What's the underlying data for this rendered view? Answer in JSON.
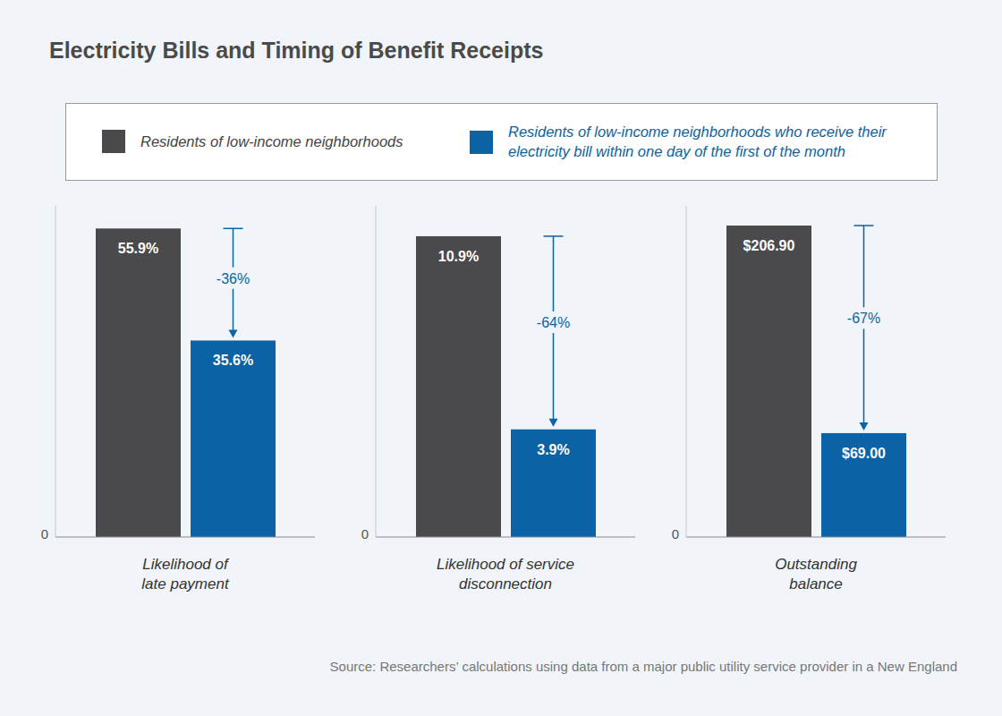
{
  "title": "Electricity Bills and Timing of Benefit Receipts",
  "source": "Source: Researchers’ calculations using data from a major public utility service provider in a New England",
  "chart_data": [
    {
      "type": "bar",
      "xlabel": "Likelihood of late payment",
      "categories": [
        null
      ],
      "ylim": [
        0,
        60
      ],
      "yticks": [
        0
      ],
      "data_labels": true,
      "annotation": "-36%",
      "series": [
        {
          "name": "Residents of low-income neighborhoods",
          "color": "#4a4a4c",
          "values": [
            55.9
          ],
          "value_labels": [
            "55.9%"
          ]
        },
        {
          "name": "Residents of low-income neighborhoods who receive their electricity bill within one day of the first of the month",
          "color": "#0b63a5",
          "values": [
            35.6
          ],
          "value_labels": [
            "35.6%"
          ]
        }
      ]
    },
    {
      "type": "bar",
      "xlabel": "Likelihood of service disconnection",
      "categories": [
        null
      ],
      "ylim": [
        0,
        12
      ],
      "yticks": [
        0
      ],
      "data_labels": true,
      "annotation": "-64%",
      "series": [
        {
          "name": "Residents of low-income neighborhoods",
          "color": "#4a4a4c",
          "values": [
            10.9
          ],
          "value_labels": [
            "10.9%"
          ]
        },
        {
          "name": "Residents of low-income neighborhoods who receive their electricity bill within one day of the first of the month",
          "color": "#0b63a5",
          "values": [
            3.9
          ],
          "value_labels": [
            "3.9%"
          ]
        }
      ]
    },
    {
      "type": "bar",
      "xlabel": "Outstanding balance",
      "categories": [
        null
      ],
      "ylim": [
        0,
        220
      ],
      "yticks": [
        0
      ],
      "data_labels": true,
      "annotation": "-67%",
      "series": [
        {
          "name": "Residents of low-income neighborhoods",
          "color": "#4a4a4c",
          "values": [
            206.9
          ],
          "value_labels": [
            "$206.90"
          ]
        },
        {
          "name": "Residents of low-income neighborhoods who receive their electricity bill within one day of the first of the month",
          "color": "#0b63a5",
          "values": [
            69
          ],
          "value_labels": [
            "$69.00"
          ]
        }
      ]
    }
  ]
}
